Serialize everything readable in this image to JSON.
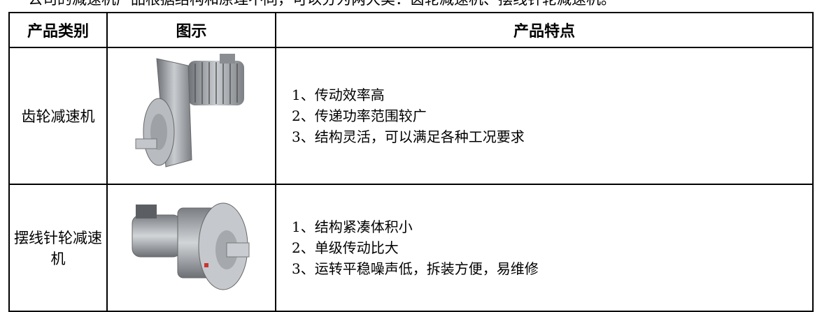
{
  "intro": "公司的减速机产品根据结构和原理不同，可以分为两大类：齿轮减速机、摆线针轮减速机。",
  "table": {
    "header": [
      "产品类别",
      "图示",
      "产品特点"
    ],
    "rows": [
      {
        "category": "齿轮减速机",
        "features": [
          "1、传动效率高",
          "2、传递功率范围较广",
          "3、结构灵活，可以满足各种工况要求"
        ]
      },
      {
        "category": "摆线针轮减速机",
        "features": [
          "1、结构紧凑体积小",
          "2、单级传动比大",
          "3、运转平稳噪声低，拆装方便，易维修"
        ]
      }
    ]
  }
}
